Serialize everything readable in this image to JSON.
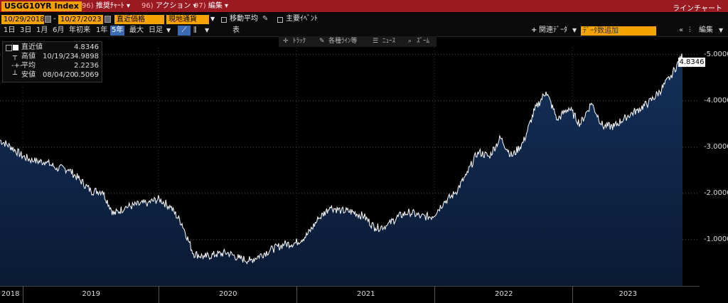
{
  "header": {
    "ticker": "USGG10YR Index",
    "menu1_num": "96)",
    "menu1_label": "推奨ﾁｬｰﾄ",
    "menu2_num": "96)",
    "menu2_label": "アクション",
    "menu3_num": "97)",
    "menu3_label": "編集",
    "chart_mode": "ラインチャート"
  },
  "controls": {
    "start_date": "10/29/2018",
    "end_date": "10/27/2023",
    "price_field": "直近価格",
    "currency_field": "現地通貨",
    "moving_avg": "移動平均",
    "key_events": "主要ｲﾍﾞﾝﾄ",
    "periods": [
      "1日",
      "3日",
      "1月",
      "6月",
      "年初来",
      "1年",
      "5年",
      "最大",
      "日足"
    ],
    "table_label": "表",
    "related_data": "関連ﾃﾞｰﾀ",
    "add_data_placeholder": "ﾃﾞｰﾀ数追加",
    "edit_label": "編集"
  },
  "toolbar": {
    "track": "ﾄﾗｯｸ",
    "lines": "各種ﾗｲﾝ等",
    "news": "ﾆｭｰｽ",
    "zoom": "ｽﾞｰﾑ"
  },
  "legend": {
    "last_label": "直近値",
    "last_value": "4.8346",
    "high_label": "高値",
    "high_date": "10/19/23",
    "high_value": "4.9898",
    "avg_label": "平均",
    "avg_value": "2.2236",
    "low_label": "安値",
    "low_date": "08/04/20",
    "low_value": "0.5069"
  },
  "colors": {
    "line": "#ffffff",
    "fill_top": "#14305a",
    "fill_bottom": "#0a1a33",
    "header_bg": "#9a1a22",
    "accent_orange": "#f5a300"
  },
  "chart_data": {
    "type": "area",
    "title": "USGG10YR Index",
    "x": [
      "2018-10",
      "2018-11",
      "2018-12",
      "2019-01",
      "2019-02",
      "2019-03",
      "2019-04",
      "2019-05",
      "2019-06",
      "2019-07",
      "2019-08",
      "2019-09",
      "2019-10",
      "2019-11",
      "2019-12",
      "2020-01",
      "2020-02",
      "2020-03",
      "2020-04",
      "2020-05",
      "2020-06",
      "2020-07",
      "2020-08",
      "2020-09",
      "2020-10",
      "2020-11",
      "2020-12",
      "2021-01",
      "2021-02",
      "2021-03",
      "2021-04",
      "2021-05",
      "2021-06",
      "2021-07",
      "2021-08",
      "2021-09",
      "2021-10",
      "2021-11",
      "2021-12",
      "2022-01",
      "2022-02",
      "2022-03",
      "2022-04",
      "2022-05",
      "2022-06",
      "2022-07",
      "2022-08",
      "2022-09",
      "2022-10",
      "2022-11",
      "2022-12",
      "2023-01",
      "2023-02",
      "2023-03",
      "2023-04",
      "2023-05",
      "2023-06",
      "2023-07",
      "2023-08",
      "2023-09",
      "2023-10"
    ],
    "values": [
      3.15,
      3.0,
      2.8,
      2.7,
      2.68,
      2.55,
      2.52,
      2.3,
      2.05,
      2.05,
      1.55,
      1.7,
      1.75,
      1.8,
      1.88,
      1.7,
      1.35,
      0.7,
      0.63,
      0.68,
      0.72,
      0.6,
      0.55,
      0.68,
      0.8,
      0.9,
      0.93,
      1.1,
      1.45,
      1.7,
      1.63,
      1.6,
      1.5,
      1.25,
      1.3,
      1.5,
      1.6,
      1.5,
      1.5,
      1.8,
      2.0,
      2.4,
      2.9,
      2.8,
      3.2,
      2.8,
      3.1,
      3.8,
      4.2,
      3.6,
      3.85,
      3.5,
      3.95,
      3.45,
      3.45,
      3.65,
      3.8,
      3.95,
      4.2,
      4.55,
      4.98
    ],
    "last_value": 4.8346,
    "y_ticks": [
      "1.0000",
      "2.0000",
      "3.0000",
      "4.0000",
      "5.0000"
    ],
    "ylim": [
      0,
      5.15
    ],
    "x_labels": [
      "2018",
      "2019",
      "2020",
      "2021",
      "2022",
      "2023"
    ],
    "grid": true
  }
}
